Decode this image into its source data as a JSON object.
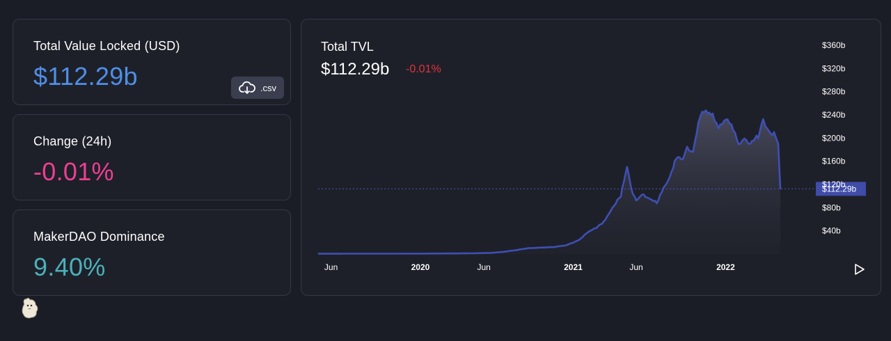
{
  "stats": {
    "tvl_label": "Total Value Locked (USD)",
    "tvl_value": "$112.29b",
    "change_label": "Change (24h)",
    "change_value": "-0.01%",
    "dominance_label": "MakerDAO Dominance",
    "dominance_value": "9.40%",
    "csv_label": ".csv"
  },
  "colors": {
    "tvl_value": "#4f8fe6",
    "change_value": "#ee3f93",
    "dominance_value": "#4bb1bb",
    "chart_change": "#e0333a",
    "line": "#3f4fb3"
  },
  "icons": {
    "csv": "cloud-download-icon",
    "play": "play-icon",
    "mascot": "llama-icon"
  },
  "chart": {
    "title": "Total TVL",
    "value": "$112.29b",
    "change": "-0.01%"
  },
  "chart_data": {
    "type": "area",
    "title": "Total TVL",
    "xlabel": "",
    "ylabel": "",
    "x_range": [
      "2019-05-01",
      "2022-05-12"
    ],
    "ylim": [
      0,
      360
    ],
    "y_unit": "billions USD",
    "y_ticks": [
      "$360b",
      "$320b",
      "$280b",
      "$240b",
      "$200b",
      "$160b",
      "$120b",
      "$80b",
      "$40b"
    ],
    "x_ticks": [
      {
        "label": "Jun",
        "date": "2019-06-01",
        "bold": false
      },
      {
        "label": "2020",
        "date": "2020-01-01",
        "bold": true
      },
      {
        "label": "Jun",
        "date": "2020-06-01",
        "bold": false
      },
      {
        "label": "2021",
        "date": "2021-01-01",
        "bold": true
      },
      {
        "label": "Jun",
        "date": "2021-06-01",
        "bold": false
      },
      {
        "label": "2022",
        "date": "2022-01-01",
        "bold": true
      }
    ],
    "current_value_label": "$112.29b",
    "current_value": 112.29,
    "grid": false,
    "series": [
      {
        "x": [
          "2019-05-01",
          "2019-09-01",
          "2020-01-01",
          "2020-03-01",
          "2020-05-01",
          "2020-06-15",
          "2020-07-15",
          "2020-08-15",
          "2020-09-15",
          "2020-10-15",
          "2020-11-15",
          "2020-12-15",
          "2021-01-15",
          "2021-02-05",
          "2021-02-25",
          "2021-03-15",
          "2021-04-05",
          "2021-04-25",
          "2021-05-10",
          "2021-05-20",
          "2021-06-01",
          "2021-06-15",
          "2021-07-01",
          "2021-07-20",
          "2021-08-05",
          "2021-08-20",
          "2021-09-05",
          "2021-09-20",
          "2021-10-01",
          "2021-10-15",
          "2021-11-01",
          "2021-11-15",
          "2021-12-01",
          "2021-12-15",
          "2022-01-01",
          "2022-01-15",
          "2022-02-01",
          "2022-02-15",
          "2022-03-01",
          "2022-03-20",
          "2022-04-01",
          "2022-04-15",
          "2022-05-01",
          "2022-05-07",
          "2022-05-12"
        ],
        "y": [
          0.5,
          0.6,
          0.7,
          0.9,
          1.2,
          1.8,
          3.5,
          6.5,
          10,
          11,
          12,
          15,
          24,
          38,
          45,
          55,
          80,
          100,
          150,
          112,
          92,
          102,
          97,
          88,
          112,
          132,
          168,
          162,
          182,
          178,
          238,
          246,
          242,
          216,
          232,
          226,
          188,
          196,
          193,
          202,
          228,
          211,
          205,
          190,
          112
        ]
      }
    ]
  }
}
